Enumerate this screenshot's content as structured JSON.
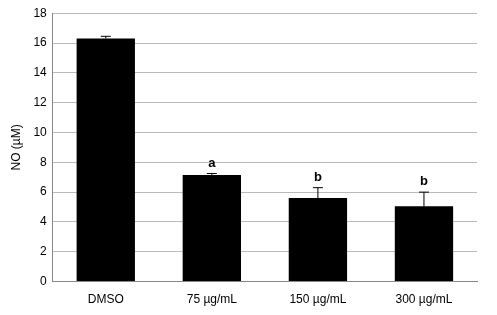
{
  "chart_data": {
    "type": "bar",
    "y_label": "NO (µM)",
    "categories": [
      "DMSO",
      "75 µg/mL",
      "150 µg/mL",
      "300 µg/mL"
    ],
    "values": [
      16.3,
      7.15,
      5.6,
      5.05
    ],
    "errors": [
      0.15,
      0.1,
      0.7,
      0.95
    ],
    "annotations": [
      null,
      "a",
      "b",
      "b"
    ],
    "color": "#000000",
    "ylim": [
      0,
      18
    ],
    "yticks": [
      0,
      2,
      4,
      6,
      8,
      10,
      12,
      14,
      16,
      18
    ],
    "grid": true
  }
}
